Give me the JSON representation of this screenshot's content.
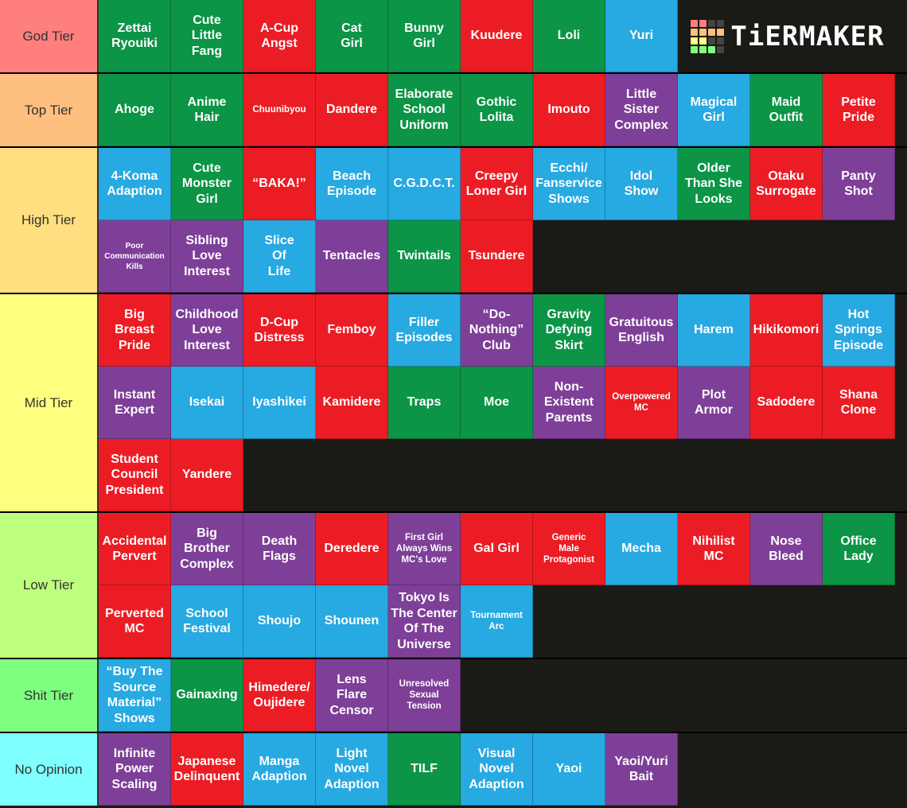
{
  "logo": {
    "text": "TiERMAKER",
    "grid_colors": [
      "#ff7f7f",
      "#ff7f7f",
      "#444444",
      "#444444",
      "#ffbf7f",
      "#ffbf7f",
      "#ffbf7f",
      "#ffbf7f",
      "#ffff7f",
      "#ffff7f",
      "#444444",
      "#444444",
      "#7fff7f",
      "#7fff7f",
      "#7fff7f",
      "#444444"
    ]
  },
  "colors": {
    "green": "#0c9447",
    "red": "#ec1c24",
    "blue": "#27a9e1",
    "purple": "#7e3f98"
  },
  "tiers": [
    {
      "label": "God Tier",
      "color": "#ff7f7f",
      "items": [
        {
          "text": "Zettai\nRyouiki",
          "c": "green"
        },
        {
          "text": "Cute\nLittle\nFang",
          "c": "green"
        },
        {
          "text": "A-Cup\nAngst",
          "c": "red"
        },
        {
          "text": "Cat\nGirl",
          "c": "green"
        },
        {
          "text": "Bunny\nGirl",
          "c": "green"
        },
        {
          "text": "Kuudere",
          "c": "red"
        },
        {
          "text": "Loli",
          "c": "green"
        },
        {
          "text": "Yuri",
          "c": "blue"
        }
      ]
    },
    {
      "label": "Top Tier",
      "color": "#ffbf7f",
      "items": [
        {
          "text": "Ahoge",
          "c": "green"
        },
        {
          "text": "Anime\nHair",
          "c": "green"
        },
        {
          "text": "Chuunibyou",
          "c": "red",
          "size": "small"
        },
        {
          "text": "Dandere",
          "c": "red"
        },
        {
          "text": "Elaborate\nSchool\nUniform",
          "c": "green"
        },
        {
          "text": "Gothic\nLolita",
          "c": "green"
        },
        {
          "text": "Imouto",
          "c": "red"
        },
        {
          "text": "Little\nSister\nComplex",
          "c": "purple"
        },
        {
          "text": "Magical\nGirl",
          "c": "blue"
        },
        {
          "text": "Maid\nOutfit",
          "c": "green"
        },
        {
          "text": "Petite\nPride",
          "c": "red"
        }
      ]
    },
    {
      "label": "High Tier",
      "color": "#ffdf7f",
      "items": [
        {
          "text": "4-Koma\nAdaption",
          "c": "blue"
        },
        {
          "text": "Cute\nMonster\nGirl",
          "c": "green"
        },
        {
          "text": "“BAKA!”",
          "c": "red"
        },
        {
          "text": "Beach\nEpisode",
          "c": "blue"
        },
        {
          "text": "C.G.D.C.T.",
          "c": "blue"
        },
        {
          "text": "Creepy\nLoner Girl",
          "c": "red"
        },
        {
          "text": "Ecchi/\nFanservice\nShows",
          "c": "blue"
        },
        {
          "text": "Idol\nShow",
          "c": "blue"
        },
        {
          "text": "Older\nThan She\nLooks",
          "c": "green"
        },
        {
          "text": "Otaku\nSurrogate",
          "c": "red"
        },
        {
          "text": "Panty\nShot",
          "c": "purple"
        },
        {
          "text": "Poor\nCommunication\nKills",
          "c": "purple",
          "size": "xs"
        },
        {
          "text": "Sibling\nLove\nInterest",
          "c": "purple"
        },
        {
          "text": "Slice\nOf\nLife",
          "c": "blue"
        },
        {
          "text": "Tentacles",
          "c": "purple"
        },
        {
          "text": "Twintails",
          "c": "green"
        },
        {
          "text": "Tsundere",
          "c": "red"
        }
      ]
    },
    {
      "label": "Mid Tier",
      "color": "#ffff7f",
      "items": [
        {
          "text": "Big\nBreast\nPride",
          "c": "red"
        },
        {
          "text": "Childhood\nLove\nInterest",
          "c": "purple"
        },
        {
          "text": "D-Cup\nDistress",
          "c": "red"
        },
        {
          "text": "Femboy",
          "c": "red"
        },
        {
          "text": "Filler\nEpisodes",
          "c": "blue"
        },
        {
          "text": "“Do-\nNothing”\nClub",
          "c": "purple"
        },
        {
          "text": "Gravity\nDefying\nSkirt",
          "c": "green"
        },
        {
          "text": "Gratuitous\nEnglish",
          "c": "purple"
        },
        {
          "text": "Harem",
          "c": "blue"
        },
        {
          "text": "Hikikomori",
          "c": "red"
        },
        {
          "text": "Hot\nSprings\nEpisode",
          "c": "blue"
        },
        {
          "text": "Instant\nExpert",
          "c": "purple"
        },
        {
          "text": "Isekai",
          "c": "blue"
        },
        {
          "text": "Iyashikei",
          "c": "blue"
        },
        {
          "text": "Kamidere",
          "c": "red"
        },
        {
          "text": "Traps",
          "c": "green"
        },
        {
          "text": "Moe",
          "c": "green"
        },
        {
          "text": "Non-\nExistent\nParents",
          "c": "purple"
        },
        {
          "text": "Overpowered\nMC",
          "c": "red",
          "size": "small"
        },
        {
          "text": "Plot\nArmor",
          "c": "purple"
        },
        {
          "text": "Sadodere",
          "c": "red"
        },
        {
          "text": "Shana\nClone",
          "c": "red"
        },
        {
          "text": "Student\nCouncil\nPresident",
          "c": "red"
        },
        {
          "text": "Yandere",
          "c": "red"
        }
      ]
    },
    {
      "label": "Low Tier",
      "color": "#bfff7f",
      "items": [
        {
          "text": "Accidental\nPervert",
          "c": "red"
        },
        {
          "text": "Big\nBrother\nComplex",
          "c": "purple"
        },
        {
          "text": "Death\nFlags",
          "c": "purple"
        },
        {
          "text": "Deredere",
          "c": "red"
        },
        {
          "text": "First Girl\nAlways Wins\nMC's Love",
          "c": "purple",
          "size": "small"
        },
        {
          "text": "Gal Girl",
          "c": "red"
        },
        {
          "text": "Generic\nMale\nProtagonist",
          "c": "red",
          "size": "small"
        },
        {
          "text": "Mecha",
          "c": "blue"
        },
        {
          "text": "Nihilist\nMC",
          "c": "red"
        },
        {
          "text": "Nose\nBleed",
          "c": "purple"
        },
        {
          "text": "Office\nLady",
          "c": "green"
        },
        {
          "text": "Perverted\nMC",
          "c": "red"
        },
        {
          "text": "School\nFestival",
          "c": "blue"
        },
        {
          "text": "Shoujo",
          "c": "blue"
        },
        {
          "text": "Shounen",
          "c": "blue"
        },
        {
          "text": "Tokyo Is\nThe Center\nOf The\nUniverse",
          "c": "purple"
        },
        {
          "text": "Tournament\nArc",
          "c": "blue",
          "size": "small"
        }
      ]
    },
    {
      "label": "Shit Tier",
      "color": "#7fff7f",
      "items": [
        {
          "text": "“Buy The\nSource\nMaterial”\nShows",
          "c": "blue"
        },
        {
          "text": "Gainaxing",
          "c": "green"
        },
        {
          "text": "Himedere/\nOujidere",
          "c": "red"
        },
        {
          "text": "Lens\nFlare\nCensor",
          "c": "purple"
        },
        {
          "text": "Unresolved\nSexual\nTension",
          "c": "purple",
          "size": "small"
        }
      ]
    },
    {
      "label": "No Opinion",
      "color": "#7fffff",
      "items": [
        {
          "text": "Infinite\nPower\nScaling",
          "c": "purple"
        },
        {
          "text": "Japanese\nDelinquent",
          "c": "red"
        },
        {
          "text": "Manga\nAdaption",
          "c": "blue"
        },
        {
          "text": "Light\nNovel\nAdaption",
          "c": "blue"
        },
        {
          "text": "TILF",
          "c": "green"
        },
        {
          "text": "Visual\nNovel\nAdaption",
          "c": "blue"
        },
        {
          "text": "Yaoi",
          "c": "blue"
        },
        {
          "text": "Yaoi/Yuri\nBait",
          "c": "purple"
        }
      ]
    }
  ]
}
